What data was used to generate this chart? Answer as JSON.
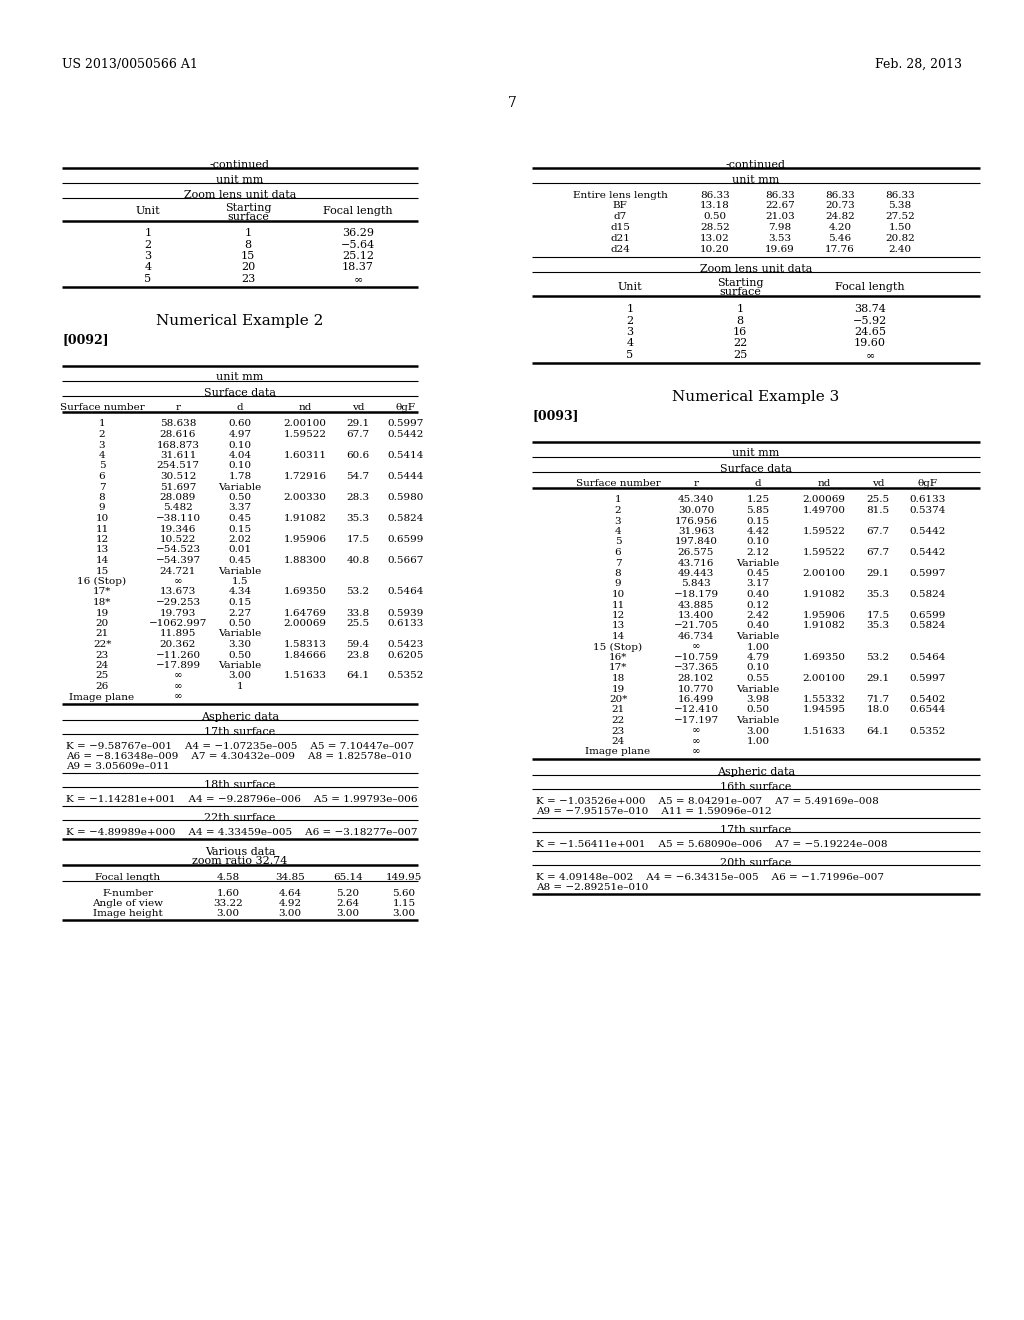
{
  "header_left": "US 2013/0050566 A1",
  "header_right": "Feb. 28, 2013",
  "page_number": "7",
  "bg_color": "#ffffff",
  "text_color": "#000000",
  "left_col": {
    "continued_label": "-continued",
    "unit_mm_1": "unit mm",
    "zoom_lens_unit_data": "Zoom lens unit data",
    "zoom_table_rows": [
      [
        "1",
        "1",
        "36.29"
      ],
      [
        "2",
        "8",
        "−5.64"
      ],
      [
        "3",
        "15",
        "25.12"
      ],
      [
        "4",
        "20",
        "18.37"
      ],
      [
        "5",
        "23",
        "∞"
      ]
    ],
    "num_example_2": "Numerical Example 2",
    "tag_0092": "[0092]",
    "unit_mm_2": "unit mm",
    "surface_data": "Surface data",
    "surface_table_rows": [
      [
        "1",
        "58.638",
        "0.60",
        "2.00100",
        "29.1",
        "0.5997"
      ],
      [
        "2",
        "28.616",
        "4.97",
        "1.59522",
        "67.7",
        "0.5442"
      ],
      [
        "3",
        "168.873",
        "0.10",
        "",
        "",
        ""
      ],
      [
        "4",
        "31.611",
        "4.04",
        "1.60311",
        "60.6",
        "0.5414"
      ],
      [
        "5",
        "254.517",
        "0.10",
        "",
        "",
        ""
      ],
      [
        "6",
        "30.512",
        "1.78",
        "1.72916",
        "54.7",
        "0.5444"
      ],
      [
        "7",
        "51.697",
        "Variable",
        "",
        "",
        ""
      ],
      [
        "8",
        "28.089",
        "0.50",
        "2.00330",
        "28.3",
        "0.5980"
      ],
      [
        "9",
        "5.482",
        "3.37",
        "",
        "",
        ""
      ],
      [
        "10",
        "−38.110",
        "0.45",
        "1.91082",
        "35.3",
        "0.5824"
      ],
      [
        "11",
        "19.346",
        "0.15",
        "",
        "",
        ""
      ],
      [
        "12",
        "10.522",
        "2.02",
        "1.95906",
        "17.5",
        "0.6599"
      ],
      [
        "13",
        "−54.523",
        "0.01",
        "",
        "",
        ""
      ],
      [
        "14",
        "−54.397",
        "0.45",
        "1.88300",
        "40.8",
        "0.5667"
      ],
      [
        "15",
        "24.721",
        "Variable",
        "",
        "",
        ""
      ],
      [
        "16 (Stop)",
        "∞",
        "1.5",
        "",
        "",
        ""
      ],
      [
        "17*",
        "13.673",
        "4.34",
        "1.69350",
        "53.2",
        "0.5464"
      ],
      [
        "18*",
        "−29.253",
        "0.15",
        "",
        "",
        ""
      ],
      [
        "19",
        "19.793",
        "2.27",
        "1.64769",
        "33.8",
        "0.5939"
      ],
      [
        "20",
        "−1062.997",
        "0.50",
        "2.00069",
        "25.5",
        "0.6133"
      ],
      [
        "21",
        "11.895",
        "Variable",
        "",
        "",
        ""
      ],
      [
        "22*",
        "20.362",
        "3.30",
        "1.58313",
        "59.4",
        "0.5423"
      ],
      [
        "23",
        "−11.260",
        "0.50",
        "1.84666",
        "23.8",
        "0.6205"
      ],
      [
        "24",
        "−17.899",
        "Variable",
        "",
        "",
        ""
      ],
      [
        "25",
        "∞",
        "3.00",
        "1.51633",
        "64.1",
        "0.5352"
      ],
      [
        "26",
        "∞",
        "1",
        "",
        "",
        ""
      ],
      [
        "Image plane",
        "∞",
        "",
        "",
        "",
        ""
      ]
    ],
    "aspheric_data": "Aspheric data",
    "17th_surface_label": "17th surface",
    "aspheric_17": [
      "K = −9.58767e–001    A4 = −1.07235e–005    A5 = 7.10447e–007",
      "A6 = −8.16348e–009    A7 = 4.30432e–009    A8 = 1.82578e–010",
      "A9 = 3.05609e–011"
    ],
    "18th_surface_label": "18th surface",
    "aspheric_18": [
      "K = −1.14281e+001    A4 = −9.28796e–006    A5 = 1.99793e–006"
    ],
    "22th_surface_label": "22th surface",
    "aspheric_22": [
      "K = −4.89989e+000    A4 = 4.33459e–005    A6 = −3.18277e–007"
    ],
    "various_data_line1": "Various data",
    "various_data_line2": "zoom ratio 32.74",
    "various_table_row0": [
      "Focal length",
      "4.58",
      "34.85",
      "65.14",
      "149.95"
    ],
    "various_table_rows": [
      [
        "F-number",
        "1.60",
        "4.64",
        "5.20",
        "5.60"
      ],
      [
        "Angle of view",
        "33.22",
        "4.92",
        "2.64",
        "1.15"
      ],
      [
        "Image height",
        "3.00",
        "3.00",
        "3.00",
        "3.00"
      ]
    ]
  },
  "right_col": {
    "continued_label": "-continued",
    "unit_mm_1": "unit mm",
    "right_top_row0": [
      "Entire lens length",
      "86.33",
      "86.33",
      "86.33",
      "86.33"
    ],
    "right_top_rows": [
      [
        "BF",
        "13.18",
        "22.67",
        "20.73",
        "5.38"
      ],
      [
        "d7",
        "0.50",
        "21.03",
        "24.82",
        "27.52"
      ],
      [
        "d15",
        "28.52",
        "7.98",
        "4.20",
        "1.50"
      ],
      [
        "d21",
        "13.02",
        "3.53",
        "5.46",
        "20.82"
      ],
      [
        "d24",
        "10.20",
        "19.69",
        "17.76",
        "2.40"
      ]
    ],
    "zoom_lens_unit_data": "Zoom lens unit data",
    "zoom_table_rows": [
      [
        "1",
        "1",
        "38.74"
      ],
      [
        "2",
        "8",
        "−5.92"
      ],
      [
        "3",
        "16",
        "24.65"
      ],
      [
        "4",
        "22",
        "19.60"
      ],
      [
        "5",
        "25",
        "∞"
      ]
    ],
    "num_example_3": "Numerical Example 3",
    "tag_0093": "[0093]",
    "unit_mm_2": "unit mm",
    "surface_data": "Surface data",
    "surface_table_rows": [
      [
        "1",
        "45.340",
        "1.25",
        "2.00069",
        "25.5",
        "0.6133"
      ],
      [
        "2",
        "30.070",
        "5.85",
        "1.49700",
        "81.5",
        "0.5374"
      ],
      [
        "3",
        "176.956",
        "0.15",
        "",
        "",
        ""
      ],
      [
        "4",
        "31.963",
        "4.42",
        "1.59522",
        "67.7",
        "0.5442"
      ],
      [
        "5",
        "197.840",
        "0.10",
        "",
        "",
        ""
      ],
      [
        "6",
        "26.575",
        "2.12",
        "1.59522",
        "67.7",
        "0.5442"
      ],
      [
        "7",
        "43.716",
        "Variable",
        "",
        "",
        ""
      ],
      [
        "8",
        "49.443",
        "0.45",
        "2.00100",
        "29.1",
        "0.5997"
      ],
      [
        "9",
        "5.843",
        "3.17",
        "",
        "",
        ""
      ],
      [
        "10",
        "−18.179",
        "0.40",
        "1.91082",
        "35.3",
        "0.5824"
      ],
      [
        "11",
        "43.885",
        "0.12",
        "",
        "",
        ""
      ],
      [
        "12",
        "13.400",
        "2.42",
        "1.95906",
        "17.5",
        "0.6599"
      ],
      [
        "13",
        "−21.705",
        "0.40",
        "1.91082",
        "35.3",
        "0.5824"
      ],
      [
        "14",
        "46.734",
        "Variable",
        "",
        "",
        ""
      ],
      [
        "15 (Stop)",
        "∞",
        "1.00",
        "",
        "",
        ""
      ],
      [
        "16*",
        "−10.759",
        "4.79",
        "1.69350",
        "53.2",
        "0.5464"
      ],
      [
        "17*",
        "−37.365",
        "0.10",
        "",
        "",
        ""
      ],
      [
        "18",
        "28.102",
        "0.55",
        "2.00100",
        "29.1",
        "0.5997"
      ],
      [
        "19",
        "10.770",
        "Variable",
        "",
        "",
        ""
      ],
      [
        "20*",
        "16.499",
        "3.98",
        "1.55332",
        "71.7",
        "0.5402"
      ],
      [
        "21",
        "−12.410",
        "0.50",
        "1.94595",
        "18.0",
        "0.6544"
      ],
      [
        "22",
        "−17.197",
        "Variable",
        "",
        "",
        ""
      ],
      [
        "23",
        "∞",
        "3.00",
        "1.51633",
        "64.1",
        "0.5352"
      ],
      [
        "24",
        "∞",
        "1.00",
        "",
        "",
        ""
      ],
      [
        "Image plane",
        "∞",
        "",
        "",
        "",
        ""
      ]
    ],
    "aspheric_data": "Aspheric data",
    "16th_surface_label": "16th surface",
    "aspheric_16": [
      "K = −1.03526e+000    A5 = 8.04291e–007    A7 = 5.49169e–008",
      "A9 = −7.95157e–010    A11 = 1.59096e–012"
    ],
    "17th_surface_label": "17th surface",
    "aspheric_17": [
      "K = −1.56411e+001    A5 = 5.68090e–006    A7 = −5.19224e–008"
    ],
    "20th_surface_label": "20th surface",
    "aspheric_20": [
      "K = 4.09148e–002    A4 = −6.34315e–005    A6 = −1.71996e–007",
      "A8 = −2.89251e–010"
    ]
  }
}
